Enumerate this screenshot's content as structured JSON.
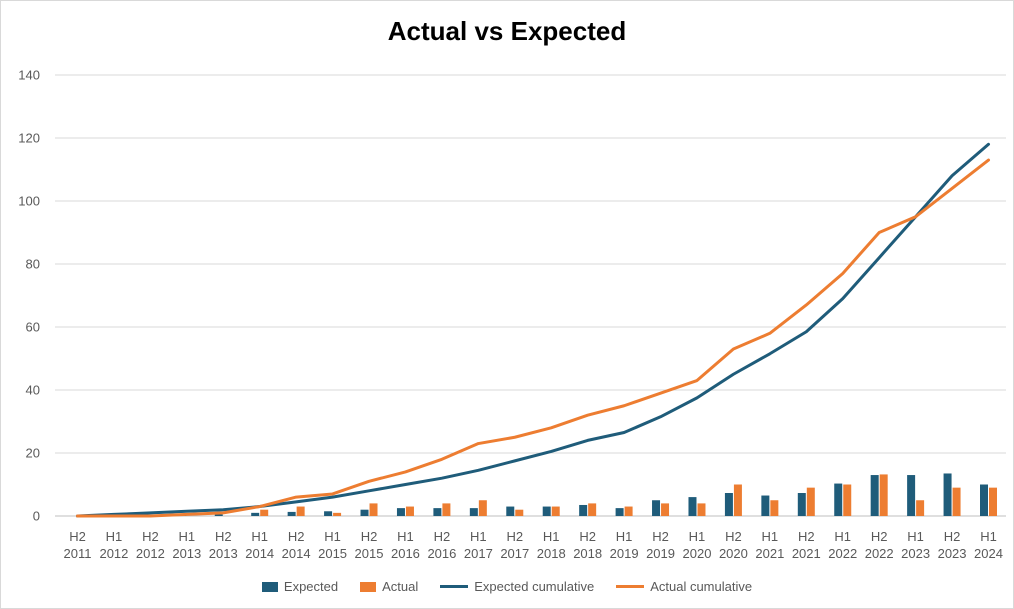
{
  "chart_data": {
    "type": "bar",
    "title": "Actual vs Expected",
    "xlabel": "",
    "ylabel": "",
    "ylim": [
      0,
      140
    ],
    "yticks": [
      0,
      20,
      40,
      60,
      80,
      100,
      120,
      140
    ],
    "grid": true,
    "legend_position": "bottom",
    "categories": [
      [
        "H2",
        "2011"
      ],
      [
        "H1",
        "2012"
      ],
      [
        "H2",
        "2012"
      ],
      [
        "H1",
        "2013"
      ],
      [
        "H2",
        "2013"
      ],
      [
        "H1",
        "2014"
      ],
      [
        "H2",
        "2014"
      ],
      [
        "H1",
        "2015"
      ],
      [
        "H2",
        "2015"
      ],
      [
        "H1",
        "2016"
      ],
      [
        "H2",
        "2016"
      ],
      [
        "H1",
        "2017"
      ],
      [
        "H2",
        "2017"
      ],
      [
        "H1",
        "2018"
      ],
      [
        "H2",
        "2018"
      ],
      [
        "H1",
        "2019"
      ],
      [
        "H2",
        "2019"
      ],
      [
        "H1",
        "2020"
      ],
      [
        "H2",
        "2020"
      ],
      [
        "H1",
        "2021"
      ],
      [
        "H2",
        "2021"
      ],
      [
        "H1",
        "2022"
      ],
      [
        "H2",
        "2022"
      ],
      [
        "H1",
        "2023"
      ],
      [
        "H2",
        "2023"
      ],
      [
        "H1",
        "2024"
      ]
    ],
    "series": [
      {
        "name": "Expected",
        "type": "bar",
        "color": "#1f5c7a",
        "values": [
          0,
          0.5,
          0.5,
          0.5,
          0.5,
          1,
          1.3,
          1.5,
          2,
          2.5,
          2.5,
          2.5,
          3,
          3,
          3.5,
          2.5,
          5,
          6,
          7.3,
          6.5,
          7.3,
          10.3,
          13,
          13,
          13.5,
          10
        ]
      },
      {
        "name": "Actual",
        "type": "bar",
        "color": "#ed7d31",
        "values": [
          0,
          0,
          0,
          0,
          0,
          2,
          3,
          1,
          4,
          3,
          4,
          5,
          2,
          3,
          4,
          3,
          4,
          4,
          10,
          5,
          9,
          10,
          13.2,
          5,
          9,
          9
        ]
      },
      {
        "name": "Expected cumulative",
        "type": "line",
        "color": "#1f5c7a",
        "values": [
          0,
          0.5,
          1,
          1.5,
          2,
          3,
          4.5,
          6,
          8,
          10,
          12,
          14.5,
          17.5,
          20.5,
          24,
          26.5,
          31.5,
          37.5,
          45,
          51.5,
          58.5,
          69,
          82,
          95,
          108,
          118
        ]
      },
      {
        "name": "Actual cumulative",
        "type": "line",
        "color": "#ed7d31",
        "values": [
          0,
          0,
          0,
          0.5,
          1,
          3,
          6,
          7,
          11,
          14,
          18,
          23,
          25,
          28,
          32,
          35,
          39,
          43,
          53,
          58,
          67,
          77,
          90,
          95,
          104,
          113
        ]
      }
    ]
  }
}
